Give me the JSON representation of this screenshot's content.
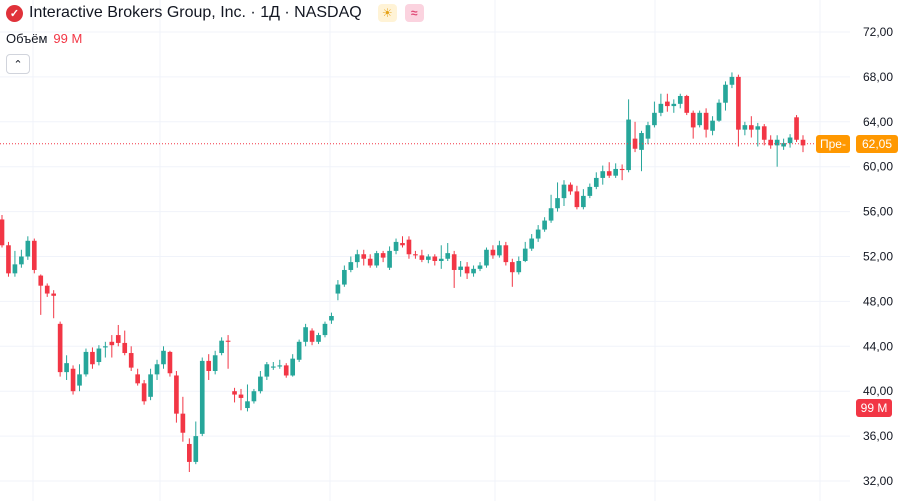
{
  "header": {
    "title": "Interactive Brokers Group, Inc. · 1Д · NASDAQ",
    "logo_glyph": "✓",
    "sun_badge_glyph": "☀",
    "wave_badge_glyph": "≈"
  },
  "volume": {
    "label": "Объём",
    "value": "99 M"
  },
  "collapse_glyph": "⌃",
  "tags": {
    "pre_label": "Пре-",
    "price": "62,05",
    "volume": "99 M"
  },
  "colors": {
    "up": "#26a69a",
    "down": "#f23645",
    "price_line": "#f23645",
    "tag_orange": "#ff9800"
  },
  "chart_data": {
    "type": "candlestick",
    "y_axis": {
      "min": 32,
      "max": 72,
      "step": 4,
      "tick_labels": [
        "32,00",
        "36,00",
        "40,00",
        "44,00",
        "48,00",
        "52,00",
        "56,00",
        "60,00",
        "64,00",
        "68,00",
        "72,00"
      ]
    },
    "last_price": 62.05,
    "candles": [
      [
        55.3,
        53.0,
        55.7,
        52.8
      ],
      [
        53.0,
        50.5,
        53.3,
        50.2
      ],
      [
        50.5,
        51.3,
        52.5,
        50.2
      ],
      [
        51.3,
        52.0,
        52.6,
        51.0
      ],
      [
        52.0,
        53.4,
        53.8,
        51.7
      ],
      [
        53.4,
        50.8,
        53.6,
        50.5
      ],
      [
        50.3,
        49.4,
        50.4,
        46.8
      ],
      [
        49.4,
        48.7,
        49.6,
        48.4
      ],
      [
        48.7,
        48.5,
        49.0,
        46.5
      ],
      [
        46.0,
        41.7,
        46.2,
        41.3
      ],
      [
        41.7,
        42.5,
        43.2,
        41.0
      ],
      [
        42.0,
        40.0,
        42.3,
        39.7
      ],
      [
        40.5,
        41.5,
        42.4,
        40.0
      ],
      [
        41.5,
        43.5,
        43.8,
        41.3
      ],
      [
        43.5,
        42.4,
        43.9,
        42.0
      ],
      [
        42.6,
        43.8,
        44.1,
        42.3
      ],
      [
        43.9,
        44.0,
        44.4,
        43.0
      ],
      [
        44.4,
        44.1,
        45.0,
        43.0
      ],
      [
        45.0,
        44.3,
        45.9,
        44.0
      ],
      [
        44.3,
        43.4,
        45.4,
        43.2
      ],
      [
        43.4,
        42.1,
        44.0,
        41.8
      ],
      [
        41.5,
        40.7,
        42.0,
        40.5
      ],
      [
        40.7,
        39.1,
        41.0,
        38.8
      ],
      [
        39.5,
        41.5,
        42.0,
        39.2
      ],
      [
        41.5,
        42.4,
        42.8,
        41.0
      ],
      [
        42.4,
        43.6,
        44.0,
        42.0
      ],
      [
        43.5,
        41.6,
        43.6,
        41.3
      ],
      [
        41.4,
        38.0,
        41.8,
        37.2
      ],
      [
        38.0,
        36.3,
        39.5,
        35.5
      ],
      [
        35.3,
        33.7,
        35.8,
        32.8
      ],
      [
        33.7,
        36.0,
        37.3,
        33.5
      ],
      [
        36.2,
        42.7,
        43.0,
        36.0
      ],
      [
        42.7,
        41.8,
        43.3,
        41.0
      ],
      [
        41.8,
        43.2,
        43.6,
        41.5
      ],
      [
        43.4,
        44.5,
        44.8,
        43.2
      ],
      [
        44.5,
        44.4,
        45.0,
        42.0
      ],
      [
        40.0,
        39.7,
        40.3,
        39.0
      ],
      [
        39.7,
        39.4,
        40.2,
        38.3
      ],
      [
        38.5,
        39.1,
        40.6,
        38.2
      ],
      [
        39.1,
        40.0,
        40.2,
        38.9
      ],
      [
        40.0,
        41.3,
        41.8,
        39.8
      ],
      [
        41.3,
        42.4,
        42.6,
        41.0
      ],
      [
        42.1,
        42.2,
        42.6,
        41.9
      ],
      [
        42.2,
        42.3,
        42.8,
        42.0
      ],
      [
        42.3,
        41.4,
        42.5,
        41.2
      ],
      [
        41.4,
        42.9,
        43.3,
        41.3
      ],
      [
        42.8,
        44.4,
        44.6,
        42.6
      ],
      [
        44.4,
        45.7,
        46.0,
        44.0
      ],
      [
        45.4,
        44.4,
        45.6,
        44.1
      ],
      [
        44.4,
        45.0,
        45.2,
        44.2
      ],
      [
        45.0,
        46.0,
        46.2,
        44.8
      ],
      [
        46.3,
        46.7,
        47.0,
        46.0
      ],
      [
        48.7,
        49.5,
        49.9,
        48.1
      ],
      [
        49.5,
        50.8,
        51.2,
        49.3
      ],
      [
        50.8,
        51.5,
        52.0,
        50.6
      ],
      [
        51.5,
        52.2,
        52.6,
        51.0
      ],
      [
        52.2,
        51.8,
        52.6,
        51.2
      ],
      [
        51.8,
        51.2,
        52.2,
        51.0
      ],
      [
        51.2,
        52.3,
        52.5,
        51.0
      ],
      [
        52.3,
        51.9,
        52.5,
        51.5
      ],
      [
        51.0,
        52.5,
        52.9,
        50.8
      ],
      [
        52.5,
        53.3,
        53.6,
        52.2
      ],
      [
        53.2,
        53.0,
        53.8,
        52.8
      ],
      [
        53.5,
        52.2,
        53.8,
        51.8
      ],
      [
        52.2,
        52.1,
        52.5,
        51.8
      ],
      [
        52.1,
        51.7,
        52.6,
        51.5
      ],
      [
        51.7,
        52.0,
        52.2,
        51.4
      ],
      [
        52.0,
        51.6,
        52.2,
        51.2
      ],
      [
        51.6,
        51.8,
        53.0,
        50.9
      ],
      [
        51.8,
        52.3,
        53.2,
        51.6
      ],
      [
        52.2,
        50.8,
        52.5,
        49.2
      ],
      [
        50.8,
        51.1,
        51.6,
        50.2
      ],
      [
        51.1,
        50.5,
        51.5,
        50.0
      ],
      [
        50.5,
        50.9,
        51.2,
        50.2
      ],
      [
        50.9,
        51.2,
        51.5,
        50.7
      ],
      [
        51.2,
        52.6,
        52.8,
        51.0
      ],
      [
        52.6,
        52.1,
        53.0,
        51.8
      ],
      [
        52.1,
        53.0,
        53.4,
        51.9
      ],
      [
        53.0,
        51.5,
        53.3,
        51.2
      ],
      [
        51.5,
        50.6,
        51.8,
        49.3
      ],
      [
        50.6,
        51.6,
        52.0,
        50.4
      ],
      [
        51.6,
        52.7,
        53.3,
        51.5
      ],
      [
        52.7,
        53.6,
        54.0,
        52.5
      ],
      [
        53.6,
        54.4,
        54.8,
        53.3
      ],
      [
        54.4,
        55.2,
        55.5,
        54.2
      ],
      [
        55.2,
        56.3,
        57.5,
        55.0
      ],
      [
        56.3,
        57.2,
        58.6,
        56.0
      ],
      [
        57.2,
        58.4,
        58.8,
        56.5
      ],
      [
        58.4,
        57.8,
        58.6,
        57.5
      ],
      [
        57.8,
        56.4,
        58.3,
        56.2
      ],
      [
        56.4,
        57.4,
        58.0,
        56.2
      ],
      [
        57.4,
        58.2,
        58.5,
        57.2
      ],
      [
        58.2,
        59.0,
        59.5,
        58.0
      ],
      [
        59.0,
        59.6,
        60.1,
        58.4
      ],
      [
        59.6,
        59.2,
        60.4,
        59.0
      ],
      [
        59.2,
        59.8,
        60.3,
        59.0
      ],
      [
        59.8,
        59.7,
        60.2,
        58.8
      ],
      [
        59.7,
        64.2,
        66.0,
        59.5
      ],
      [
        62.5,
        61.6,
        64.0,
        61.3
      ],
      [
        61.5,
        63.0,
        63.2,
        59.6
      ],
      [
        62.5,
        63.7,
        64.0,
        62.0
      ],
      [
        63.7,
        64.8,
        65.8,
        63.5
      ],
      [
        64.8,
        65.6,
        66.5,
        64.5
      ],
      [
        65.8,
        65.4,
        66.5,
        64.9
      ],
      [
        65.4,
        65.6,
        66.0,
        64.8
      ],
      [
        65.6,
        66.3,
        66.5,
        65.2
      ],
      [
        66.3,
        64.8,
        66.4,
        64.6
      ],
      [
        64.8,
        63.5,
        65.0,
        62.5
      ],
      [
        63.7,
        64.8,
        65.0,
        63.5
      ],
      [
        64.8,
        63.3,
        65.2,
        62.6
      ],
      [
        63.2,
        64.1,
        64.5,
        62.8
      ],
      [
        64.1,
        65.7,
        66.0,
        64.0
      ],
      [
        65.7,
        67.3,
        67.6,
        65.0
      ],
      [
        67.3,
        68.0,
        68.4,
        67.0
      ],
      [
        68.0,
        63.3,
        68.2,
        61.8
      ],
      [
        63.3,
        63.7,
        64.0,
        62.8
      ],
      [
        63.7,
        63.3,
        64.5,
        62.6
      ],
      [
        63.3,
        63.6,
        63.9,
        61.8
      ],
      [
        63.6,
        62.4,
        63.8,
        61.9
      ],
      [
        62.4,
        61.9,
        62.8,
        61.6
      ],
      [
        61.9,
        62.4,
        62.8,
        60.0
      ],
      [
        61.8,
        62.1,
        62.5,
        61.5
      ],
      [
        62.1,
        62.6,
        62.9,
        61.7
      ],
      [
        64.4,
        62.4,
        64.6,
        62.2
      ],
      [
        62.4,
        61.9,
        62.8,
        61.3
      ]
    ]
  }
}
